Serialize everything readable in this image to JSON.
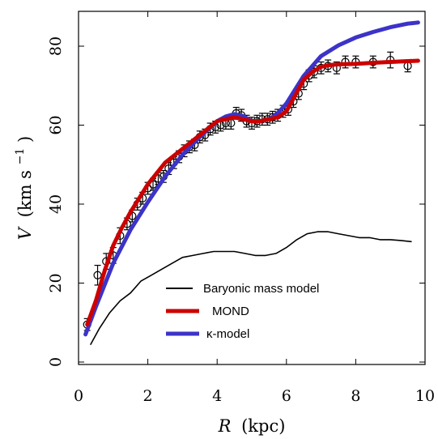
{
  "chart_data": {
    "type": "line",
    "xlabel": {
      "var": "R",
      "unit": "(kpc)"
    },
    "ylabel": {
      "var": "V",
      "unit": "(km s",
      "exp": "−1",
      "close": ")"
    },
    "xlim": [
      0,
      10
    ],
    "ylim": [
      0,
      90
    ],
    "xticks": [
      0,
      2,
      4,
      6,
      8,
      10
    ],
    "yticks": [
      0,
      20,
      40,
      60,
      80
    ],
    "grid": false,
    "legend_position": "lower-center",
    "series": [
      {
        "name": "Baryonic mass model",
        "color": "#000000",
        "x": [
          0.35,
          0.6,
          0.9,
          1.2,
          1.5,
          1.8,
          2.1,
          2.4,
          2.7,
          3.0,
          3.3,
          3.6,
          3.9,
          4.2,
          4.5,
          4.8,
          5.1,
          5.4,
          5.7,
          6.0,
          6.3,
          6.6,
          6.9,
          7.2,
          7.5,
          7.8,
          8.1,
          8.4,
          8.7,
          9.0,
          9.3,
          9.6
        ],
        "y": [
          4.5,
          8.5,
          12.5,
          15.5,
          17.5,
          20.5,
          22.0,
          23.5,
          25.0,
          26.5,
          27.0,
          27.5,
          28.0,
          28.0,
          28.0,
          27.5,
          27.0,
          27.0,
          27.5,
          29.0,
          31.0,
          32.5,
          33.0,
          33.0,
          32.5,
          32.0,
          31.5,
          31.5,
          31.0,
          31.0,
          30.8,
          30.5
        ]
      },
      {
        "name": "MOND",
        "color": "#cc0000",
        "x": [
          0.25,
          0.5,
          0.75,
          1.0,
          1.25,
          1.5,
          2.0,
          2.5,
          3.0,
          3.5,
          4.0,
          4.25,
          4.5,
          4.75,
          5.0,
          5.25,
          5.5,
          5.75,
          6.0,
          6.25,
          6.5,
          6.75,
          7.0,
          7.25,
          7.5,
          8.0,
          8.5,
          9.0,
          9.5,
          9.8
        ],
        "y": [
          9.5,
          15.5,
          23.0,
          29.5,
          34.0,
          38.0,
          45.0,
          50.5,
          54.0,
          57.5,
          61.0,
          61.5,
          62.0,
          61.5,
          61.0,
          61.0,
          61.5,
          62.0,
          63.5,
          67.5,
          71.5,
          73.5,
          74.8,
          75.2,
          75.4,
          75.5,
          75.8,
          76.0,
          76.2,
          76.3
        ]
      },
      {
        "name": "κ-model",
        "color": "#3c33c8",
        "x": [
          0.2,
          0.5,
          1.0,
          1.5,
          2.0,
          2.5,
          3.0,
          3.5,
          4.0,
          4.25,
          4.5,
          4.75,
          5.0,
          5.25,
          5.5,
          5.75,
          6.0,
          6.25,
          6.5,
          6.75,
          7.0,
          7.5,
          8.0,
          8.5,
          9.0,
          9.5,
          9.8
        ],
        "y": [
          7.0,
          14.0,
          25.0,
          33.5,
          40.5,
          47.0,
          52.5,
          57.0,
          61.0,
          62.2,
          62.8,
          62.3,
          61.0,
          61.0,
          61.5,
          63.0,
          65.5,
          69.0,
          72.5,
          75.0,
          77.5,
          80.2,
          82.2,
          83.6,
          84.8,
          85.7,
          86.0
        ]
      },
      {
        "name": "data",
        "color": "#000000",
        "x": [
          0.25,
          0.55,
          0.8,
          1.0,
          1.2,
          1.4,
          1.55,
          1.7,
          1.85,
          2.0,
          2.15,
          2.3,
          2.45,
          2.6,
          2.75,
          2.9,
          3.05,
          3.2,
          3.35,
          3.5,
          3.65,
          3.8,
          3.95,
          4.1,
          4.25,
          4.4,
          4.55,
          4.7,
          4.85,
          5.0,
          5.15,
          5.3,
          5.45,
          5.6,
          5.75,
          5.9,
          6.05,
          6.2,
          6.35,
          6.5,
          6.65,
          6.8,
          7.0,
          7.2,
          7.45,
          7.7,
          8.0,
          8.5,
          9.0,
          9.5
        ],
        "y": [
          9.5,
          22.0,
          25.5,
          27.0,
          32.0,
          35.0,
          37.0,
          40.0,
          41.5,
          44.0,
          45.0,
          46.5,
          47.0,
          49.0,
          50.5,
          52.0,
          53.5,
          54.5,
          55.0,
          57.0,
          57.5,
          59.0,
          59.5,
          60.0,
          60.5,
          60.5,
          63.0,
          62.5,
          61.0,
          60.5,
          61.0,
          61.5,
          61.5,
          62.0,
          62.5,
          63.5,
          64.0,
          66.0,
          68.0,
          70.5,
          72.5,
          73.5,
          74.5,
          75.0,
          74.5,
          76.0,
          76.0,
          76.0,
          76.5,
          75.0
        ],
        "yerr": [
          1.5,
          2.5,
          2.0,
          2.0,
          2.0,
          1.5,
          1.5,
          1.5,
          1.5,
          1.5,
          1.5,
          1.5,
          1.5,
          1.5,
          1.5,
          1.5,
          1.5,
          1.5,
          1.5,
          1.5,
          1.5,
          1.5,
          1.5,
          1.5,
          1.5,
          1.5,
          1.5,
          1.5,
          1.5,
          1.5,
          1.5,
          1.5,
          1.5,
          1.5,
          1.5,
          1.5,
          1.5,
          1.5,
          1.5,
          1.5,
          1.5,
          1.5,
          1.5,
          1.5,
          1.5,
          1.5,
          1.5,
          1.5,
          2.0,
          1.5
        ]
      }
    ],
    "legend": [
      {
        "label": "Baryonic mass model",
        "color": "#000000"
      },
      {
        "label": "MOND",
        "color": "#cc0000"
      },
      {
        "label": "κ-model",
        "color": "#3c33c8"
      }
    ]
  }
}
